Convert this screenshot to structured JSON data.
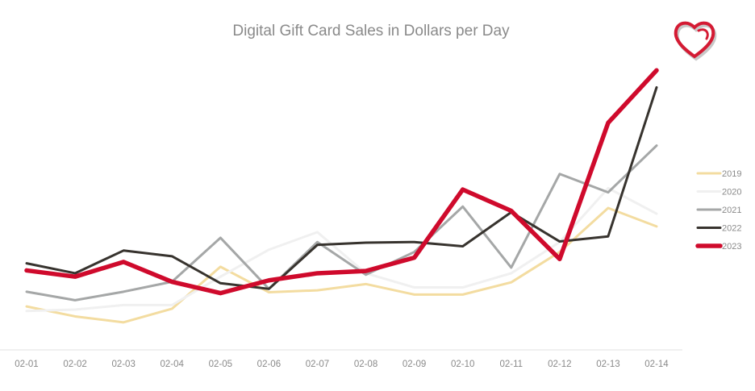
{
  "chart_data": {
    "type": "line",
    "title": "Digital Gift Card Sales in Dollars per Day",
    "categories": [
      "02-01",
      "02-02",
      "02-03",
      "02-04",
      "02-05",
      "02-06",
      "02-07",
      "02-08",
      "02-09",
      "02-10",
      "02-11",
      "02-12",
      "02-13",
      "02-14"
    ],
    "ylim": [
      0,
      100
    ],
    "grid": false,
    "legend_position": "right",
    "series": [
      {
        "name": "2019",
        "color": "#f3dca0",
        "width": 3,
        "values": [
          15.3,
          11.8,
          9.7,
          14.5,
          29.3,
          20.3,
          21.0,
          23.2,
          19.5,
          19.5,
          23.8,
          34.5,
          50.0,
          43.5
        ]
      },
      {
        "name": "2020",
        "color": "#f0f0f0",
        "width": 3,
        "values": [
          13.7,
          14.2,
          15.8,
          15.8,
          25.8,
          35.3,
          41.5,
          27.0,
          22.0,
          22.0,
          27.0,
          38.0,
          57.0,
          48.0
        ]
      },
      {
        "name": "2021",
        "color": "#a5a7a7",
        "width": 3,
        "values": [
          20.5,
          17.5,
          20.5,
          24.0,
          39.5,
          21.5,
          38.0,
          26.5,
          34.5,
          50.5,
          29.0,
          62.0,
          55.5,
          72.0
        ]
      },
      {
        "name": "2022",
        "color": "#37332e",
        "width": 3,
        "values": [
          30.5,
          27.0,
          35.0,
          33.0,
          23.5,
          21.5,
          37.0,
          37.8,
          38.0,
          36.5,
          48.5,
          38.2,
          40.0,
          92.5
        ]
      },
      {
        "name": "2023",
        "color": "#cf0a2c",
        "width": 5.5,
        "values": [
          28.0,
          25.8,
          31.0,
          24.0,
          20.0,
          24.5,
          27.0,
          27.8,
          32.5,
          56.5,
          49.0,
          32.0,
          80.0,
          98.5
        ]
      }
    ]
  }
}
